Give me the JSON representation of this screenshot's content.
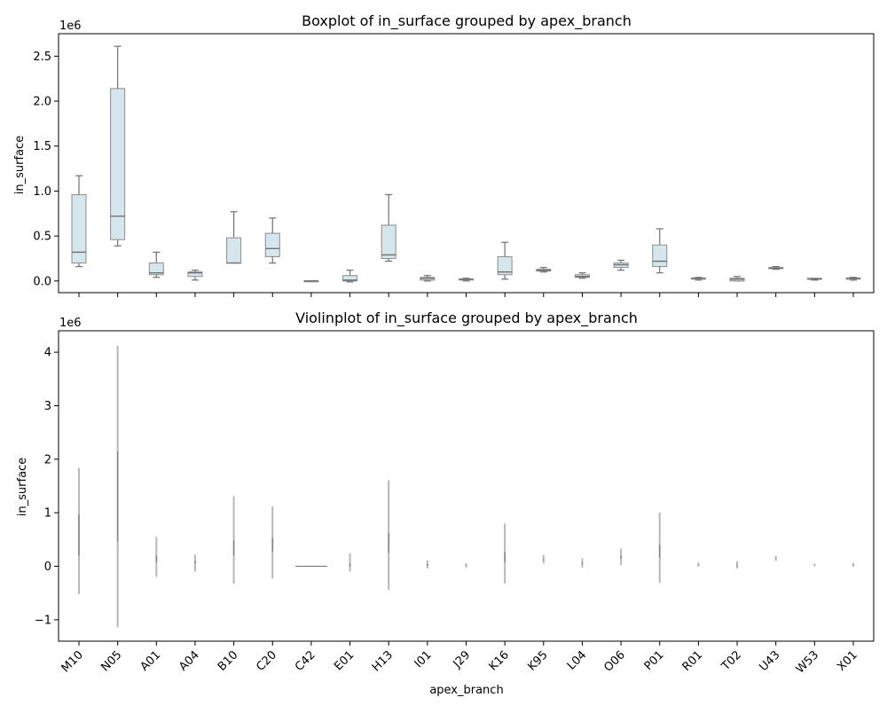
{
  "chart_data": [
    {
      "type": "box",
      "title": "Boxplot of in_surface grouped by apex_branch",
      "xlabel": "",
      "ylabel": "in_surface",
      "y_multiplier_label": "1e6",
      "ylim": [
        -0.13,
        2.75
      ],
      "yticks": [
        0.0,
        0.5,
        1.0,
        1.5,
        2.0,
        2.5
      ],
      "ytick_labels": [
        "0.0",
        "0.5",
        "1.0",
        "1.5",
        "2.0",
        "2.5"
      ],
      "categories": [
        "M10",
        "N05",
        "A01",
        "A04",
        "B10",
        "C20",
        "C42",
        "E01",
        "H13",
        "I01",
        "J29",
        "K16",
        "K95",
        "L04",
        "O06",
        "P01",
        "R01",
        "T02",
        "U43",
        "W53",
        "X01"
      ],
      "boxes": [
        {
          "whislo": 0.16,
          "q1": 0.2,
          "med": 0.32,
          "q3": 0.96,
          "whishi": 1.17
        },
        {
          "whislo": 0.39,
          "q1": 0.46,
          "med": 0.72,
          "q3": 2.14,
          "whishi": 2.61
        },
        {
          "whislo": 0.04,
          "q1": 0.07,
          "med": 0.09,
          "q3": 0.2,
          "whishi": 0.32
        },
        {
          "whislo": 0.01,
          "q1": 0.05,
          "med": 0.09,
          "q3": 0.1,
          "whishi": 0.12
        },
        {
          "whislo": 0.2,
          "q1": 0.2,
          "med": 0.2,
          "q3": 0.48,
          "whishi": 0.77
        },
        {
          "whislo": 0.2,
          "q1": 0.27,
          "med": 0.36,
          "q3": 0.53,
          "whishi": 0.7
        },
        {
          "whislo": 0.0,
          "q1": 0.0,
          "med": 0.0,
          "q3": 0.0,
          "whishi": 0.0
        },
        {
          "whislo": -0.01,
          "q1": 0.0,
          "med": 0.01,
          "q3": 0.06,
          "whishi": 0.12
        },
        {
          "whislo": 0.22,
          "q1": 0.25,
          "med": 0.29,
          "q3": 0.62,
          "whishi": 0.96
        },
        {
          "whislo": 0.0,
          "q1": 0.01,
          "med": 0.03,
          "q3": 0.04,
          "whishi": 0.06
        },
        {
          "whislo": 0.0,
          "q1": 0.01,
          "med": 0.02,
          "q3": 0.02,
          "whishi": 0.03
        },
        {
          "whislo": 0.02,
          "q1": 0.07,
          "med": 0.1,
          "q3": 0.27,
          "whishi": 0.43
        },
        {
          "whislo": 0.1,
          "q1": 0.11,
          "med": 0.12,
          "q3": 0.13,
          "whishi": 0.15
        },
        {
          "whislo": 0.03,
          "q1": 0.04,
          "med": 0.05,
          "q3": 0.07,
          "whishi": 0.09
        },
        {
          "whislo": 0.12,
          "q1": 0.15,
          "med": 0.18,
          "q3": 0.2,
          "whishi": 0.23
        },
        {
          "whislo": 0.09,
          "q1": 0.16,
          "med": 0.22,
          "q3": 0.4,
          "whishi": 0.58
        },
        {
          "whislo": 0.01,
          "q1": 0.02,
          "med": 0.03,
          "q3": 0.03,
          "whishi": 0.04
        },
        {
          "whislo": 0.0,
          "q1": 0.0,
          "med": 0.02,
          "q3": 0.03,
          "whishi": 0.05
        },
        {
          "whislo": 0.13,
          "q1": 0.14,
          "med": 0.14,
          "q3": 0.15,
          "whishi": 0.16
        },
        {
          "whislo": 0.01,
          "q1": 0.02,
          "med": 0.02,
          "q3": 0.03,
          "whishi": 0.03
        },
        {
          "whislo": 0.01,
          "q1": 0.02,
          "med": 0.03,
          "q3": 0.03,
          "whishi": 0.04
        }
      ]
    },
    {
      "type": "violin",
      "title": "Violinplot of in_surface grouped by apex_branch",
      "xlabel": "apex_branch",
      "ylabel": "in_surface",
      "y_multiplier_label": "1e6",
      "ylim": [
        -1.4,
        4.4
      ],
      "yticks": [
        -1,
        0,
        1,
        2,
        3,
        4
      ],
      "ytick_labels": [
        "−1",
        "0",
        "1",
        "2",
        "3",
        "4"
      ],
      "categories": [
        "M10",
        "N05",
        "A01",
        "A04",
        "B10",
        "C20",
        "C42",
        "E01",
        "H13",
        "I01",
        "J29",
        "K16",
        "K95",
        "L04",
        "O06",
        "P01",
        "R01",
        "T02",
        "U43",
        "W53",
        "X01"
      ],
      "violins": [
        {
          "min": -0.52,
          "max": 1.84,
          "q1": 0.2,
          "q3": 0.96
        },
        {
          "min": -1.14,
          "max": 4.12,
          "q1": 0.46,
          "q3": 2.14
        },
        {
          "min": -0.2,
          "max": 0.55,
          "q1": 0.07,
          "q3": 0.2
        },
        {
          "min": -0.1,
          "max": 0.22,
          "q1": 0.05,
          "q3": 0.1
        },
        {
          "min": -0.33,
          "max": 1.31,
          "q1": 0.2,
          "q3": 0.48
        },
        {
          "min": -0.23,
          "max": 1.12,
          "q1": 0.27,
          "q3": 0.53
        },
        {
          "min": -0.01,
          "max": 0.01,
          "q1": 0.0,
          "q3": 0.0,
          "flat": true
        },
        {
          "min": -0.1,
          "max": 0.24,
          "q1": 0.0,
          "q3": 0.06
        },
        {
          "min": -0.44,
          "max": 1.61,
          "q1": 0.25,
          "q3": 0.62
        },
        {
          "min": -0.04,
          "max": 0.11,
          "q1": 0.01,
          "q3": 0.04
        },
        {
          "min": -0.03,
          "max": 0.06,
          "q1": 0.01,
          "q3": 0.02
        },
        {
          "min": -0.32,
          "max": 0.8,
          "q1": 0.07,
          "q3": 0.27
        },
        {
          "min": 0.05,
          "max": 0.21,
          "q1": 0.11,
          "q3": 0.13
        },
        {
          "min": -0.03,
          "max": 0.15,
          "q1": 0.04,
          "q3": 0.07
        },
        {
          "min": 0.02,
          "max": 0.33,
          "q1": 0.15,
          "q3": 0.2
        },
        {
          "min": -0.31,
          "max": 1.0,
          "q1": 0.16,
          "q3": 0.4
        },
        {
          "min": -0.01,
          "max": 0.07,
          "q1": 0.02,
          "q3": 0.03
        },
        {
          "min": -0.04,
          "max": 0.09,
          "q1": 0.0,
          "q3": 0.03
        },
        {
          "min": 0.1,
          "max": 0.19,
          "q1": 0.14,
          "q3": 0.15
        },
        {
          "min": 0.0,
          "max": 0.05,
          "q1": 0.02,
          "q3": 0.03
        },
        {
          "min": -0.01,
          "max": 0.06,
          "q1": 0.02,
          "q3": 0.03
        }
      ]
    }
  ],
  "colors": {
    "box_fill": "#d5e6ec",
    "box_edge": "#8c8c8c",
    "whisker": "#707070",
    "violin": "#b8b8b8"
  }
}
